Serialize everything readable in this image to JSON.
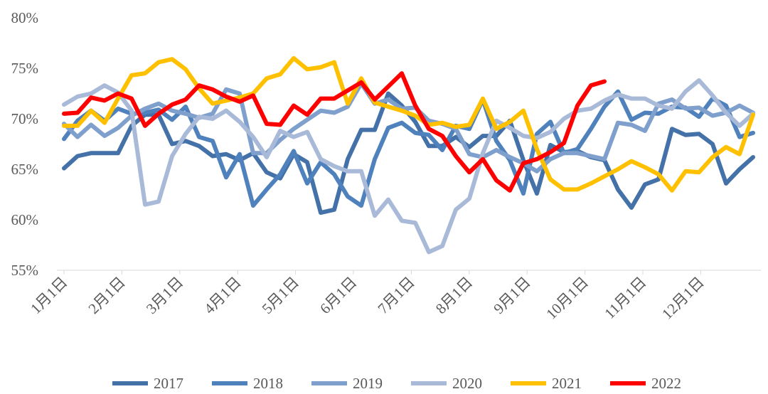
{
  "chart_data": {
    "type": "line",
    "title": "",
    "xlabel": "",
    "ylabel": "",
    "ylim": [
      55,
      80
    ],
    "y_ticks": [
      "55%",
      "60%",
      "65%",
      "70%",
      "75%",
      "80%"
    ],
    "y_tick_values": [
      55,
      60,
      65,
      70,
      75,
      80
    ],
    "x_tick_labels": [
      "1月1日",
      "2月1日",
      "3月1日",
      "4月1日",
      "5月1日",
      "6月1日",
      "7月1日",
      "8月1日",
      "9月1日",
      "10月1日",
      "11月1日",
      "12月1日"
    ],
    "x_unit": "week of year",
    "grid": false,
    "legend_position": "bottom",
    "series": [
      {
        "name": "2017",
        "color": "#4472A8",
        "values": [
          65.1,
          66.3,
          66.6,
          66.6,
          66.6,
          69.3,
          70.4,
          70.4,
          67.5,
          67.8,
          67.3,
          66.3,
          66.5,
          65.9,
          66.6,
          64.7,
          64.1,
          66.5,
          65.7,
          60.7,
          61.0,
          66.0,
          68.9,
          68.9,
          72.5,
          71.3,
          69.7,
          67.3,
          67.3,
          68.2,
          67.2,
          68.3,
          68.3,
          69.8,
          65.9,
          62.6,
          67.4,
          66.7,
          66.8,
          66.2,
          65.9,
          63.0,
          61.2,
          63.5,
          64.0,
          69.0,
          68.4,
          68.5,
          67.5,
          63.6,
          65.0,
          66.2
        ]
      },
      {
        "name": "2018",
        "color": "#4F81BD",
        "values": [
          68.0,
          69.8,
          70.8,
          69.8,
          71.0,
          70.5,
          70.6,
          70.9,
          69.9,
          71.2,
          68.2,
          67.8,
          64.2,
          66.5,
          61.4,
          63.0,
          64.5,
          66.8,
          63.6,
          65.7,
          64.5,
          62.3,
          61.4,
          66.0,
          69.1,
          69.6,
          68.6,
          68.4,
          66.9,
          69.3,
          69.0,
          71.9,
          67.8,
          65.9,
          62.6,
          68.5,
          69.7,
          66.6,
          67.0,
          69.0,
          71.2,
          72.7,
          69.9,
          70.6,
          70.5,
          71.2,
          71.1,
          70.2,
          72.0,
          71.3,
          68.2,
          68.6
        ]
      },
      {
        "name": "2019",
        "color": "#7F9FCC",
        "values": [
          69.5,
          68.2,
          69.4,
          68.3,
          69.1,
          70.3,
          71.0,
          71.5,
          70.8,
          70.5,
          70.1,
          70.5,
          72.9,
          72.5,
          66.6,
          66.6,
          67.9,
          69.0,
          69.9,
          70.8,
          70.6,
          71.2,
          73.5,
          71.5,
          71.9,
          71.0,
          71.1,
          69.8,
          69.5,
          69.0,
          66.5,
          66.2,
          66.9,
          66.2,
          65.6,
          64.8,
          66.0,
          66.6,
          66.6,
          66.3,
          66.0,
          69.6,
          69.4,
          68.8,
          71.5,
          71.9,
          71.0,
          71.1,
          70.3,
          70.6,
          71.3,
          70.6
        ]
      },
      {
        "name": "2020",
        "color": "#A9BAD9",
        "values": [
          71.4,
          72.2,
          72.5,
          73.3,
          72.6,
          70.8,
          61.5,
          61.8,
          66.3,
          68.5,
          70.2,
          70.0,
          70.8,
          69.7,
          68.2,
          66.2,
          68.8,
          68.2,
          68.7,
          66.0,
          65.3,
          64.8,
          64.8,
          60.4,
          62.0,
          59.9,
          59.7,
          56.8,
          57.4,
          61.0,
          62.1,
          66.6,
          69.8,
          69.1,
          68.3,
          68.1,
          68.7,
          70.0,
          70.8,
          71.0,
          71.8,
          72.4,
          72.0,
          72.0,
          71.3,
          71.0,
          72.7,
          73.8,
          72.3,
          70.6,
          69.3,
          70.5
        ]
      },
      {
        "name": "2021",
        "color": "#FFC000",
        "values": [
          69.3,
          69.3,
          70.8,
          69.6,
          72.0,
          74.3,
          74.5,
          75.6,
          75.9,
          74.9,
          73.0,
          71.5,
          71.8,
          72.1,
          72.5,
          74.0,
          74.4,
          76.0,
          74.9,
          75.1,
          75.6,
          71.5,
          74.0,
          71.6,
          71.2,
          70.8,
          70.3,
          69.4,
          69.6,
          69.2,
          69.4,
          72.0,
          69.0,
          69.7,
          70.8,
          67.0,
          64.0,
          63.0,
          63.0,
          63.6,
          64.3,
          65.0,
          65.8,
          65.2,
          64.5,
          62.9,
          64.8,
          64.7,
          66.2,
          67.2,
          66.5,
          70.4
        ]
      },
      {
        "name": "2022",
        "color": "#FF0000",
        "values": [
          70.5,
          70.6,
          72.1,
          71.8,
          72.5,
          72.0,
          69.3,
          70.5,
          71.4,
          71.9,
          73.3,
          72.9,
          72.2,
          71.7,
          72.3,
          69.5,
          69.4,
          71.3,
          70.4,
          72.0,
          72.0,
          72.8,
          73.6,
          71.9,
          73.2,
          74.5,
          71.3,
          69.0,
          68.3,
          66.3,
          64.7,
          66.0,
          63.9,
          62.9,
          65.6,
          66.0,
          66.7,
          67.6,
          71.3,
          73.3,
          73.7
        ]
      }
    ]
  }
}
